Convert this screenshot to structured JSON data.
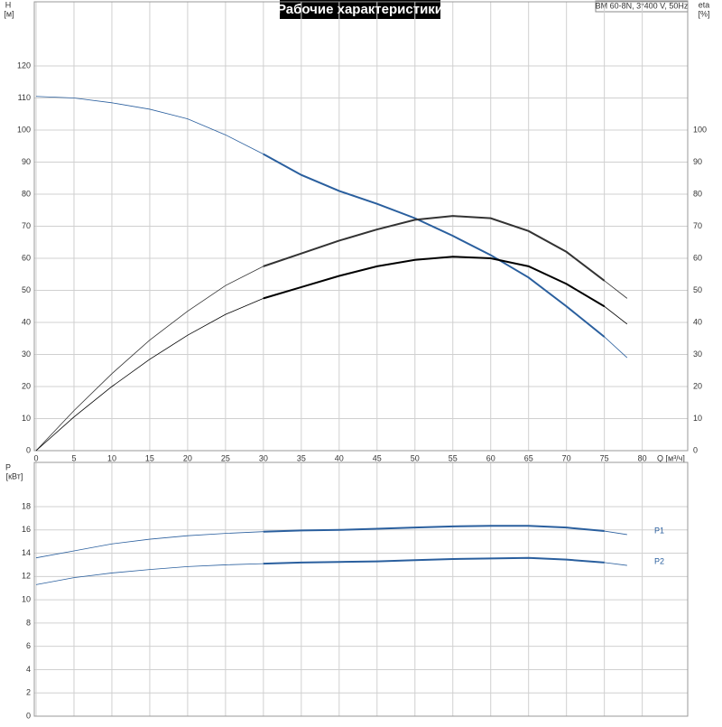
{
  "chart_data": [
    {
      "type": "line",
      "title": "Рабочие характеристики",
      "subtitle": "BM 60-8N, 3*400 V, 50Hz",
      "y_label": "H",
      "y_unit": "[м]",
      "y2_label": "eta",
      "y2_unit": "[%]",
      "x_label": "Q [м³/ч]",
      "grid": true,
      "duty_range": [
        30,
        75
      ],
      "x": [
        0,
        5,
        10,
        15,
        20,
        25,
        30,
        35,
        40,
        45,
        50,
        55,
        60,
        65,
        70,
        75,
        78
      ],
      "xlim": [
        0,
        86
      ],
      "xticks": [
        0,
        5,
        10,
        15,
        20,
        25,
        30,
        35,
        40,
        45,
        50,
        55,
        60,
        65,
        70,
        75,
        80
      ],
      "ylim": [
        0,
        140
      ],
      "yticks": [
        0,
        10,
        20,
        30,
        40,
        50,
        60,
        70,
        80,
        90,
        100,
        110,
        120
      ],
      "y2lim": [
        0,
        140
      ],
      "y2ticks": [
        0,
        10,
        20,
        30,
        40,
        50,
        60,
        70,
        80,
        90,
        100
      ],
      "series": [
        {
          "color": "#2a5f9e",
          "values": [
            110.5,
            110,
            108.5,
            106.5,
            103.5,
            98.5,
            92.5,
            86,
            81,
            77,
            72.5,
            67,
            61,
            54,
            45,
            35.5,
            29
          ]
        },
        {
          "color": "#333333",
          "axis": "y2",
          "values": [
            0,
            12.5,
            24,
            34.5,
            43.5,
            51.5,
            57.5,
            61.5,
            65.5,
            69,
            72,
            73.2,
            72.5,
            68.5,
            62,
            53,
            47.5
          ]
        },
        {
          "color": "#000000",
          "axis": "y2",
          "values": [
            0,
            10.5,
            20,
            28.5,
            36,
            42.5,
            47.5,
            51,
            54.5,
            57.5,
            59.5,
            60.5,
            60,
            57.5,
            52,
            45,
            39.5
          ]
        }
      ]
    },
    {
      "type": "line",
      "y_label": "P",
      "y_unit": "[кВт]",
      "grid": true,
      "duty_range": [
        30,
        75
      ],
      "x": [
        0,
        5,
        10,
        15,
        20,
        25,
        30,
        35,
        40,
        45,
        50,
        55,
        60,
        65,
        70,
        75,
        78
      ],
      "xlim": [
        0,
        86
      ],
      "ylim": [
        0,
        21.8
      ],
      "yticks": [
        0,
        2,
        4,
        6,
        8,
        10,
        12,
        14,
        16,
        18
      ],
      "series": [
        {
          "name": "P1",
          "color": "#2a5f9e",
          "values": [
            13.6,
            14.2,
            14.8,
            15.2,
            15.5,
            15.7,
            15.85,
            15.95,
            16.0,
            16.1,
            16.2,
            16.3,
            16.35,
            16.35,
            16.2,
            15.9,
            15.6
          ]
        },
        {
          "name": "P2",
          "color": "#2a5f9e",
          "values": [
            11.3,
            11.9,
            12.3,
            12.6,
            12.85,
            13.0,
            13.1,
            13.2,
            13.25,
            13.3,
            13.4,
            13.5,
            13.55,
            13.6,
            13.45,
            13.2,
            12.95
          ]
        }
      ]
    }
  ]
}
